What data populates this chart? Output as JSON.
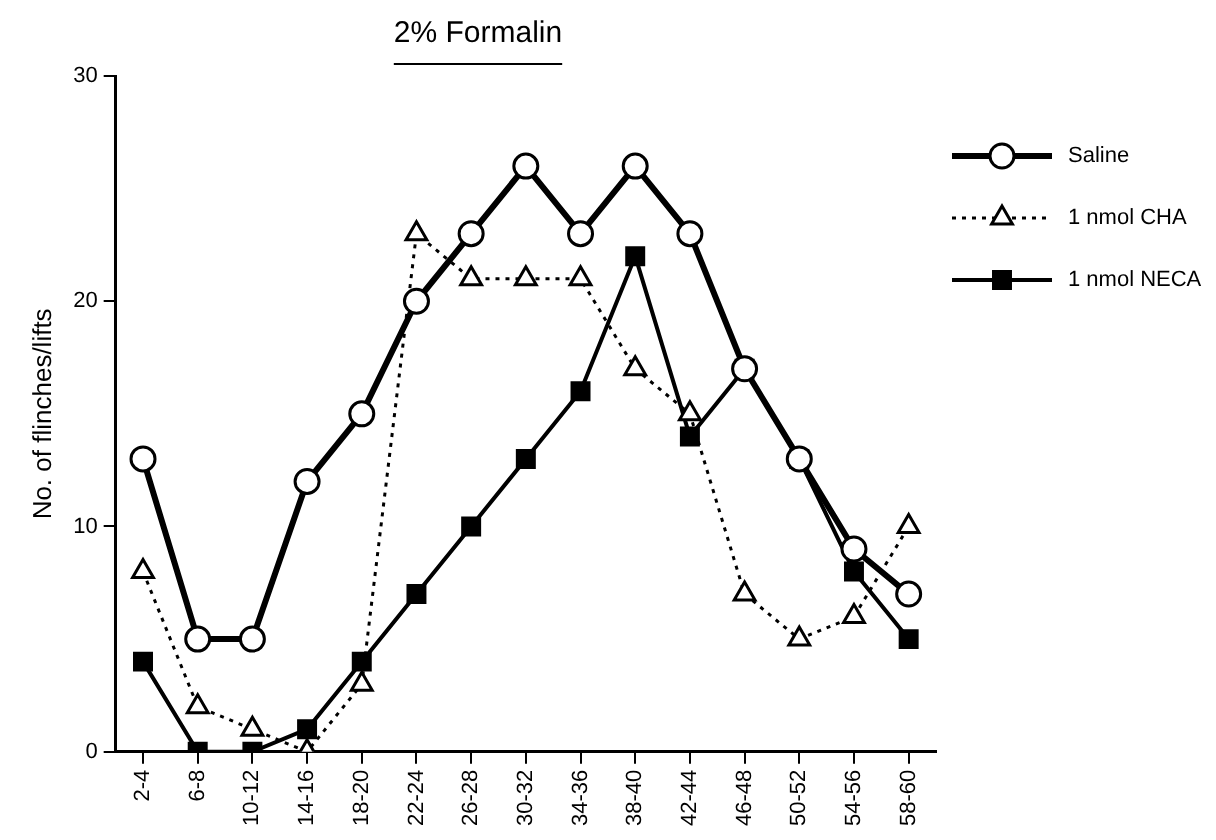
{
  "chart_data": {
    "type": "line",
    "title": "2% Formalin",
    "ylabel": "No. of flinches/lifts",
    "categories": [
      "2-4",
      "6-8",
      "10-12",
      "14-16",
      "18-20",
      "22-24",
      "26-28",
      "30-32",
      "34-36",
      "38-40",
      "42-44",
      "46-48",
      "50-52",
      "54-56",
      "58-60"
    ],
    "series": [
      {
        "name": "Saline",
        "color": "#000000",
        "marker": "circle",
        "line_style": "solid",
        "values": [
          13,
          5,
          5,
          12,
          15,
          20,
          23,
          26,
          23,
          26,
          23,
          17,
          13,
          9,
          7
        ]
      },
      {
        "name": "1 nmol CHA",
        "color": "#000000",
        "marker": "triangle",
        "line_style": "dotted",
        "values": [
          8,
          2,
          1,
          0,
          3,
          23,
          21,
          21,
          21,
          17,
          15,
          7,
          5,
          6,
          10
        ]
      },
      {
        "name": "1 nmol NECA",
        "color": "#000000",
        "marker": "square",
        "line_style": "solid",
        "values": [
          4,
          0,
          0,
          1,
          4,
          7,
          10,
          13,
          16,
          22,
          14,
          17,
          13,
          8,
          5
        ]
      }
    ],
    "ylim": [
      0,
      30
    ],
    "yticks": [
      0,
      10,
      20,
      30
    ],
    "grid": false,
    "legend": "top right"
  }
}
